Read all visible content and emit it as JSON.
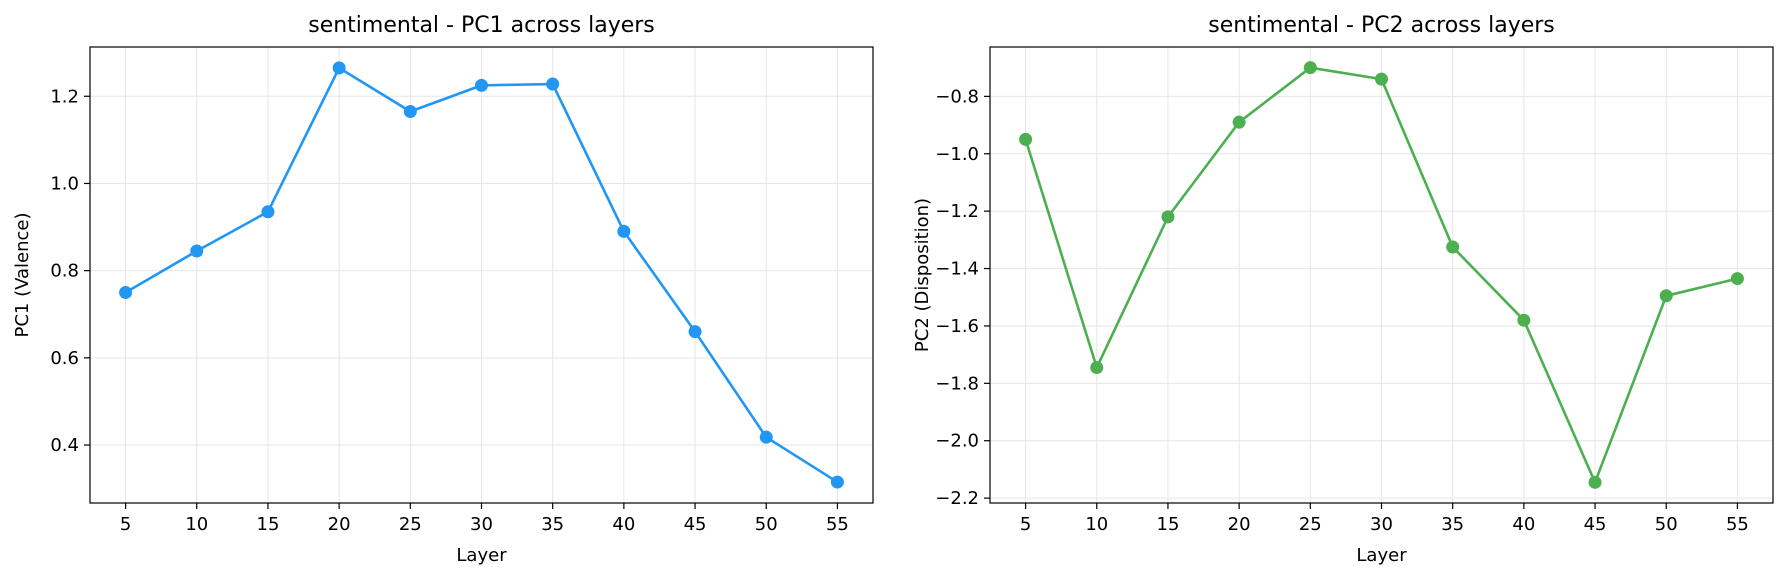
{
  "chart_data": [
    {
      "type": "line",
      "title": "sentimental - PC1 across layers",
      "xlabel": "Layer",
      "ylabel": "PC1 (Valence)",
      "x": [
        5,
        10,
        15,
        20,
        25,
        30,
        35,
        40,
        45,
        50,
        55
      ],
      "series": [
        {
          "values": [
            0.75,
            0.845,
            0.935,
            1.265,
            1.165,
            1.225,
            1.228,
            0.89,
            0.66,
            0.418,
            0.315
          ],
          "color": "#2196F3"
        }
      ],
      "xticks": [
        5,
        10,
        15,
        20,
        25,
        30,
        35,
        40,
        45,
        50,
        55
      ],
      "yticks": [
        0.4,
        0.6,
        0.8,
        1.0,
        1.2
      ],
      "ytick_labels": [
        "0.4",
        "0.6",
        "0.8",
        "1.0",
        "1.2"
      ],
      "xlim": [
        2.5,
        57.5
      ],
      "ylim": [
        0.267,
        1.313
      ],
      "grid": true
    },
    {
      "type": "line",
      "title": "sentimental - PC2 across layers",
      "xlabel": "Layer",
      "ylabel": "PC2 (Disposition)",
      "x": [
        5,
        10,
        15,
        20,
        25,
        30,
        35,
        40,
        45,
        50,
        55
      ],
      "series": [
        {
          "values": [
            -0.95,
            -1.745,
            -1.22,
            -0.89,
            -0.7,
            -0.74,
            -1.325,
            -1.58,
            -2.145,
            -1.495,
            -1.435
          ],
          "color": "#4CAF50"
        }
      ],
      "xticks": [
        5,
        10,
        15,
        20,
        25,
        30,
        35,
        40,
        45,
        50,
        55
      ],
      "yticks": [
        -2.2,
        -2.0,
        -1.8,
        -1.6,
        -1.4,
        -1.2,
        -1.0,
        -0.8
      ],
      "ytick_labels": [
        "−2.2",
        "−2.0",
        "−1.8",
        "−1.6",
        "−1.4",
        "−1.2",
        "−1.0",
        "−0.8"
      ],
      "xlim": [
        2.5,
        57.5
      ],
      "ylim": [
        -2.217,
        -0.628
      ],
      "grid": true
    }
  ]
}
